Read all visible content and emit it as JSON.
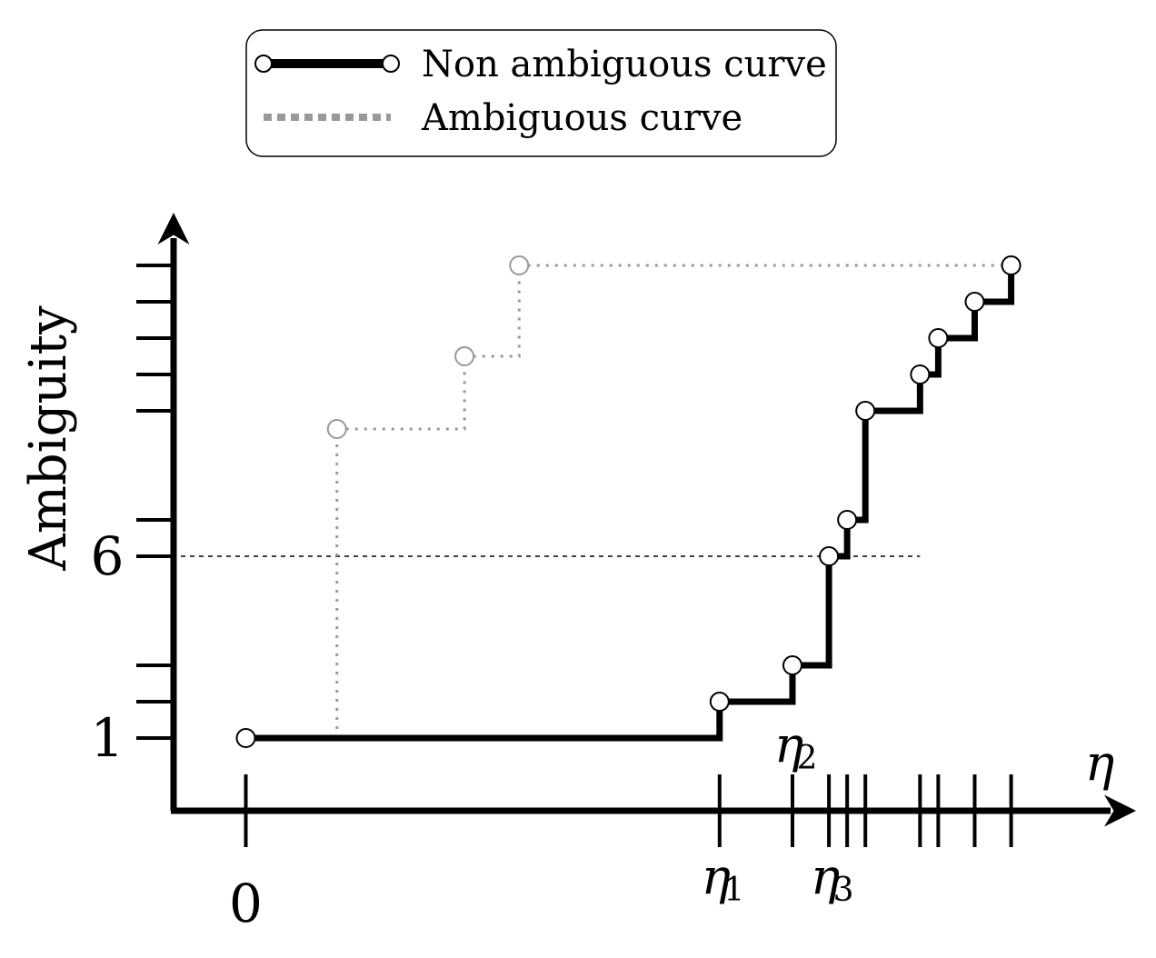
{
  "chart_data": {
    "type": "line",
    "step": true,
    "legend": {
      "placement": "top-center",
      "entries": [
        {
          "key": "nonamb",
          "label": "Non ambiguous curve",
          "color": "#000000",
          "style": "solid-with-circles"
        },
        {
          "key": "amb",
          "label": "Ambiguous curve",
          "color": "#999999",
          "style": "dotted"
        }
      ]
    },
    "x_axis": {
      "label": "η",
      "range": [
        -1,
        23
      ],
      "ticks": [
        0,
        13,
        15,
        16,
        16.5,
        17,
        18.5,
        19,
        20,
        21
      ],
      "tick_labels": [
        {
          "x": 0,
          "text": "0",
          "position": "below"
        },
        {
          "x": 13,
          "text": "η",
          "sub": "1",
          "position": "below"
        },
        {
          "x": 15,
          "text": "η",
          "sub": "2",
          "position": "above"
        },
        {
          "x": 16,
          "text": "η",
          "sub": "3",
          "position": "below"
        }
      ]
    },
    "y_axis": {
      "label": "Ambiguity",
      "range": [
        -1,
        14
      ],
      "ticks": [
        1,
        2,
        3,
        6,
        7,
        10,
        11,
        12,
        13,
        14
      ],
      "tick_labels": [
        {
          "y": 1,
          "text": "1"
        },
        {
          "y": 6,
          "text": "6"
        }
      ]
    },
    "reference_line": {
      "y": 6,
      "x_end": 18.5,
      "style": "dashed"
    },
    "series": [
      {
        "name": "Non ambiguous curve",
        "key": "nonamb",
        "points": [
          {
            "x": 0,
            "y": 1
          },
          {
            "x": 13,
            "y": 2
          },
          {
            "x": 15,
            "y": 3
          },
          {
            "x": 16,
            "y": 6
          },
          {
            "x": 16.5,
            "y": 7
          },
          {
            "x": 17,
            "y": 10
          },
          {
            "x": 18.5,
            "y": 11
          },
          {
            "x": 19,
            "y": 12
          },
          {
            "x": 20,
            "y": 13
          },
          {
            "x": 21,
            "y": 14
          }
        ]
      },
      {
        "name": "Ambiguous curve",
        "key": "amb",
        "start": {
          "x": 2.5,
          "y": 1
        },
        "end": {
          "x": 21,
          "y": 14
        },
        "points": [
          {
            "x": 2.5,
            "y": 9.5
          },
          {
            "x": 6,
            "y": 11.5
          },
          {
            "x": 7.5,
            "y": 14
          }
        ]
      }
    ]
  }
}
